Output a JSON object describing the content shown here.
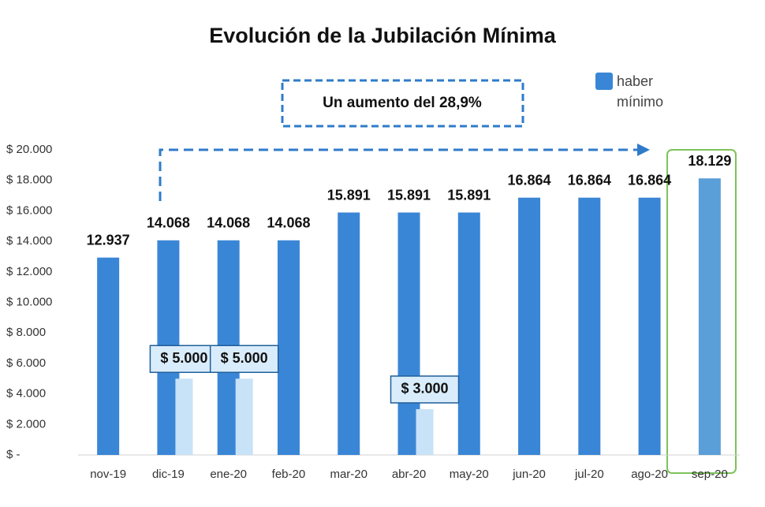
{
  "chart_data": {
    "type": "bar",
    "title": "Evolución de la Jubilación Mínima",
    "annotation": "Un aumento del 28,9%",
    "categories": [
      "nov-19",
      "dic-19",
      "ene-20",
      "feb-20",
      "mar-20",
      "abr-20",
      "may-20",
      "jun-20",
      "jul-20",
      "ago-20",
      "sep-20"
    ],
    "series": [
      {
        "name": "haber mínimo",
        "color": "#3a86d6",
        "colors": [
          "#3a86d6",
          "#3a86d6",
          "#3a86d6",
          "#3a86d6",
          "#3a86d6",
          "#3a86d6",
          "#3a86d6",
          "#3a86d6",
          "#3a86d6",
          "#3a86d6",
          "#5b9fd8"
        ],
        "values": [
          12937,
          14068,
          14068,
          14068,
          15891,
          15891,
          15891,
          16864,
          16864,
          16864,
          18129
        ],
        "value_labels": [
          "12.937",
          "14.068",
          "14.068",
          "14.068",
          "15.891",
          "15.891",
          "15.891",
          "16.864",
          "16.864",
          "16.864",
          "18.129"
        ]
      },
      {
        "color": "#c8e2f8",
        "values": [
          null,
          5000,
          5000,
          null,
          null,
          3000,
          null,
          null,
          null,
          null,
          null
        ],
        "value_labels": [
          null,
          "$ 5.000",
          "$ 5.000",
          null,
          null,
          "$ 3.000",
          null,
          null,
          null,
          null,
          null
        ]
      }
    ],
    "ylim": [
      0,
      20000
    ],
    "yticks": [
      {
        "value": 0,
        "label": "$ -"
      },
      {
        "value": 2000,
        "label": "$ 2.000"
      },
      {
        "value": 4000,
        "label": "$ 4.000"
      },
      {
        "value": 6000,
        "label": "$ 6.000"
      },
      {
        "value": 8000,
        "label": "$ 8.000"
      },
      {
        "value": 10000,
        "label": "$ 10.000"
      },
      {
        "value": 12000,
        "label": "$ 12.000"
      },
      {
        "value": 14000,
        "label": "$ 14.000"
      },
      {
        "value": 16000,
        "label": "$ 16.000"
      },
      {
        "value": 18000,
        "label": "$ 18.000"
      },
      {
        "value": 20000,
        "label": "$ 20.000"
      }
    ],
    "grid": false
  }
}
